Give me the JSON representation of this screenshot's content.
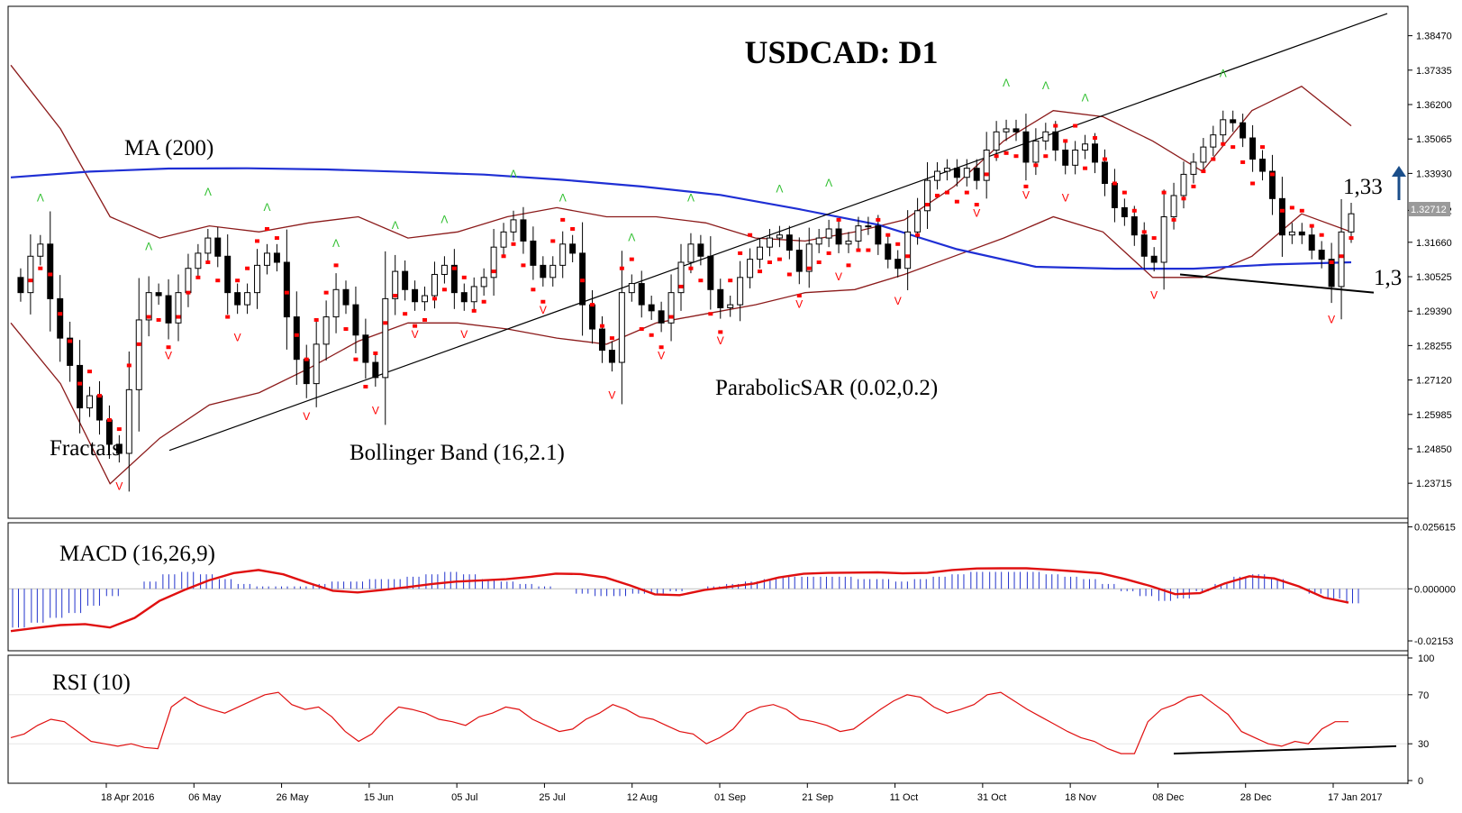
{
  "chart_data": {
    "type": "candlestick",
    "title": "USDCAD: D1",
    "symbol": "USDCAD",
    "timeframe": "D1",
    "x_ticks": [
      "18 Apr 2016",
      "06 May",
      "26 May",
      "15 Jun",
      "05 Jul",
      "25 Jul",
      "12 Aug",
      "01 Sep",
      "21 Sep",
      "11 Oct",
      "31 Oct",
      "18 Nov",
      "08 Dec",
      "28 Dec",
      "17 Jan 2017"
    ],
    "price_panel": {
      "y_ticks": [
        "1.38470",
        "1.37335",
        "1.36200",
        "1.35065",
        "1.33930",
        "1.32712",
        "1.31660",
        "1.30525",
        "1.29390",
        "1.28255",
        "1.27120",
        "1.25985",
        "1.24850",
        "1.23715"
      ],
      "ylim": [
        1.2265,
        1.3935
      ],
      "current_price": "1.32712",
      "price_path": [
        1.305,
        1.3,
        1.312,
        1.316,
        1.298,
        1.285,
        1.276,
        1.262,
        1.266,
        1.258,
        1.25,
        1.247,
        1.268,
        1.291,
        1.3,
        1.299,
        1.29,
        1.3,
        1.308,
        1.313,
        1.318,
        1.312,
        1.3,
        1.296,
        1.3,
        1.309,
        1.313,
        1.31,
        1.292,
        1.278,
        1.27,
        1.283,
        1.292,
        1.301,
        1.296,
        1.286,
        1.277,
        1.272,
        1.298,
        1.307,
        1.301,
        1.297,
        1.299,
        1.306,
        1.309,
        1.3,
        1.297,
        1.302,
        1.305,
        1.315,
        1.32,
        1.324,
        1.317,
        1.309,
        1.305,
        1.309,
        1.316,
        1.313,
        1.296,
        1.288,
        1.281,
        1.277,
        1.3,
        1.303,
        1.296,
        1.294,
        1.29,
        1.3,
        1.31,
        1.316,
        1.312,
        1.301,
        1.295,
        1.296,
        1.305,
        1.311,
        1.315,
        1.318,
        1.319,
        1.314,
        1.307,
        1.316,
        1.318,
        1.321,
        1.316,
        1.317,
        1.322,
        1.322,
        1.316,
        1.311,
        1.308,
        1.32,
        1.327,
        1.337,
        1.34,
        1.341,
        1.338,
        1.341,
        1.337,
        1.347,
        1.353,
        1.354,
        1.353,
        1.343,
        1.35,
        1.353,
        1.347,
        1.342,
        1.347,
        1.349,
        1.343,
        1.336,
        1.328,
        1.325,
        1.319,
        1.312,
        1.31,
        1.325,
        1.332,
        1.339,
        1.343,
        1.348,
        1.352,
        1.357,
        1.356,
        1.351,
        1.344,
        1.34,
        1.331,
        1.319,
        1.32,
        1.319,
        1.314,
        1.311,
        1.302,
        1.32,
        1.326
      ],
      "moving_average_200": [
        1.338,
        1.3399,
        1.3409,
        1.341,
        1.3406,
        1.3398,
        1.3389,
        1.3372,
        1.335,
        1.3322,
        1.3275,
        1.3224,
        1.3143,
        1.3085,
        1.3079,
        1.3079,
        1.3093,
        1.31
      ],
      "bollinger_upper": [
        1.375,
        1.354,
        1.325,
        1.318,
        1.322,
        1.32,
        1.323,
        1.325,
        1.318,
        1.32,
        1.325,
        1.328,
        1.325,
        1.325,
        1.323,
        1.318,
        1.317,
        1.32,
        1.324,
        1.335,
        1.35,
        1.36,
        1.358,
        1.35,
        1.34,
        1.36,
        1.368,
        1.355
      ],
      "bollinger_lower": [
        1.29,
        1.27,
        1.237,
        1.252,
        1.263,
        1.267,
        1.275,
        1.284,
        1.29,
        1.29,
        1.288,
        1.285,
        1.283,
        1.29,
        1.293,
        1.296,
        1.3,
        1.301,
        1.306,
        1.312,
        1.318,
        1.325,
        1.32,
        1.305,
        1.305,
        1.312,
        1.326,
        1.32
      ],
      "parabolic_sar_labels": true,
      "trendlines": [
        {
          "name": "rising support",
          "from": [
            1.248
          ],
          "to": [
            1.392
          ]
        },
        {
          "name": "falling support",
          "from": [
            1.306
          ],
          "to": [
            1.3
          ]
        }
      ],
      "levels": [
        {
          "label": "1,33",
          "value": 1.33,
          "direction": "up"
        },
        {
          "label": "1,3",
          "value": 1.3
        }
      ]
    },
    "macd_panel": {
      "y_ticks": [
        "0.025615",
        "0.000000",
        "-0.02153"
      ],
      "ylim": [
        -0.0245,
        0.0262
      ],
      "histogram": [
        -0.016,
        -0.014,
        -0.012,
        -0.01,
        -0.007,
        -0.003,
        0.0,
        0.003,
        0.006,
        0.007,
        0.006,
        0.004,
        0.002,
        0.001,
        0.001,
        0.001,
        0.002,
        0.003,
        0.003,
        0.004,
        0.004,
        0.005,
        0.006,
        0.007,
        0.006,
        0.004,
        0.003,
        0.002,
        0.001,
        0.0,
        -0.002,
        -0.003,
        -0.003,
        -0.002,
        -0.002,
        -0.001,
        0.0,
        0.001,
        0.002,
        0.003,
        0.004,
        0.005,
        0.005,
        0.005,
        0.005,
        0.004,
        0.004,
        0.003,
        0.004,
        0.005,
        0.006,
        0.007,
        0.007,
        0.007,
        0.007,
        0.006,
        0.005,
        0.004,
        0.002,
        -0.001,
        -0.003,
        -0.005,
        -0.004,
        -0.001,
        0.002,
        0.005,
        0.006,
        0.004,
        0.0,
        -0.002,
        -0.004,
        -0.006
      ],
      "signal": [
        -0.0175,
        -0.0162,
        -0.015,
        -0.0146,
        -0.016,
        -0.012,
        -0.005,
        -0.0005,
        0.0035,
        0.0065,
        0.0078,
        0.006,
        0.0025,
        -0.0008,
        -0.0015,
        -0.0005,
        0.0007,
        0.002,
        0.003,
        0.0035,
        0.004,
        0.005,
        0.0063,
        0.0061,
        0.0047,
        0.0014,
        -0.0023,
        -0.0026,
        -0.0005,
        0.0008,
        0.0022,
        0.0047,
        0.0062,
        0.0066,
        0.0067,
        0.0068,
        0.0064,
        0.0066,
        0.0078,
        0.0084,
        0.0085,
        0.0085,
        0.0079,
        0.0072,
        0.0064,
        0.004,
        0.0012,
        -0.0022,
        -0.0018,
        0.0022,
        0.0052,
        0.0043,
        0.001,
        -0.0036,
        -0.0057
      ]
    },
    "rsi_panel": {
      "y_ticks": [
        "100",
        "70",
        "30",
        "0"
      ],
      "ylim": [
        0,
        100
      ],
      "rsi": [
        35,
        38,
        45,
        50,
        48,
        40,
        32,
        30,
        28,
        30,
        27,
        26,
        60,
        68,
        62,
        58,
        55,
        60,
        65,
        70,
        72,
        62,
        58,
        60,
        52,
        40,
        32,
        38,
        50,
        60,
        58,
        55,
        50,
        48,
        45,
        52,
        55,
        60,
        58,
        50,
        45,
        40,
        42,
        50,
        55,
        62,
        58,
        52,
        50,
        45,
        40,
        38,
        30,
        35,
        42,
        55,
        60,
        62,
        58,
        50,
        48,
        45,
        40,
        42,
        50,
        58,
        65,
        70,
        68,
        60,
        55,
        58,
        62,
        70,
        72,
        65,
        58,
        52,
        46,
        40,
        35,
        32,
        26,
        22,
        22,
        48,
        58,
        62,
        68,
        70,
        62,
        54,
        40,
        35,
        30,
        28,
        32,
        30,
        42,
        48,
        48
      ],
      "support_line": [
        [
          0,
          22
        ],
        [
          1,
          28
        ]
      ]
    },
    "annotations": [
      "MA (200)",
      "Fractals",
      "Bollinger Band (16,2.1)",
      "ParabolicSAR (0.02,0.2)",
      "MACD (16,26,9)",
      "RSI (10)"
    ]
  },
  "colors": {
    "candle_bull": "#ffffff",
    "candle_bear": "#000000",
    "ma": "#1f2fd4",
    "bollinger": "#8b1a1a",
    "sar": "#ff0000",
    "fractal_up": "#2fbf2f",
    "fractal_down": "#ff0000",
    "macd_hist": "#2233cc",
    "macd_signal": "#e01010",
    "rsi_line": "#e01010",
    "arrow": "#1a4e8a"
  }
}
